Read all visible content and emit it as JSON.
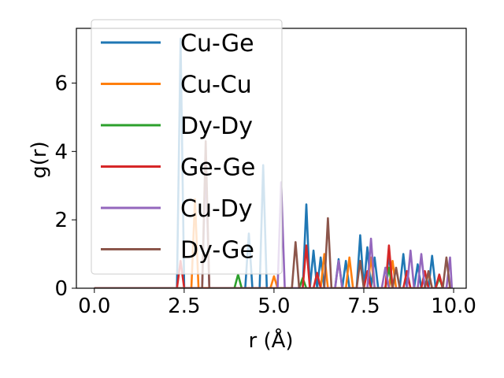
{
  "chart_data": {
    "type": "line",
    "title": "",
    "xlabel": "r (Å)",
    "ylabel": "g(r)",
    "xlim": [
      -0.5,
      10.35
    ],
    "ylim": [
      0,
      7.6
    ],
    "xticks": [
      0.0,
      2.5,
      5.0,
      7.5,
      10.0
    ],
    "xtick_labels": [
      "0.0",
      "2.5",
      "5.0",
      "7.5",
      "10.0"
    ],
    "yticks": [
      0,
      2,
      4,
      6
    ],
    "ytick_labels": [
      "0",
      "2",
      "4",
      "6"
    ],
    "grid": false,
    "legend_position": "upper-left",
    "series": [
      {
        "name": "Cu-Ge",
        "color": "#1f77b4",
        "points": [
          [
            0,
            0
          ],
          [
            2.3,
            0
          ],
          [
            2.4,
            7.3
          ],
          [
            2.5,
            0
          ],
          [
            4.2,
            0
          ],
          [
            4.3,
            1.6
          ],
          [
            4.4,
            0
          ],
          [
            4.6,
            0
          ],
          [
            4.7,
            3.6
          ],
          [
            4.8,
            0
          ],
          [
            5.8,
            0
          ],
          [
            5.9,
            2.45
          ],
          [
            6.0,
            0
          ],
          [
            6.1,
            1.1
          ],
          [
            6.2,
            0
          ],
          [
            6.3,
            0.9
          ],
          [
            6.4,
            0
          ],
          [
            6.7,
            0
          ],
          [
            6.8,
            0.85
          ],
          [
            6.9,
            0
          ],
          [
            7.0,
            0.8
          ],
          [
            7.1,
            0
          ],
          [
            7.3,
            0
          ],
          [
            7.4,
            1.55
          ],
          [
            7.5,
            0
          ],
          [
            7.6,
            1.2
          ],
          [
            7.7,
            0
          ],
          [
            7.8,
            0.9
          ],
          [
            7.9,
            0
          ],
          [
            8.1,
            0
          ],
          [
            8.2,
            1.0
          ],
          [
            8.3,
            0
          ],
          [
            8.5,
            0
          ],
          [
            8.6,
            1.0
          ],
          [
            8.7,
            0
          ],
          [
            8.9,
            0
          ],
          [
            9.0,
            0.7
          ],
          [
            9.1,
            0
          ],
          [
            9.3,
            0
          ],
          [
            9.4,
            0.95
          ],
          [
            9.5,
            0
          ],
          [
            9.9,
            0
          ]
        ]
      },
      {
        "name": "Cu-Cu",
        "color": "#ff7f0e",
        "points": [
          [
            0,
            0
          ],
          [
            2.7,
            0
          ],
          [
            2.8,
            2.6
          ],
          [
            2.9,
            0
          ],
          [
            4.9,
            0
          ],
          [
            5.0,
            0.35
          ],
          [
            5.1,
            0
          ],
          [
            6.3,
            0
          ],
          [
            6.4,
            1.0
          ],
          [
            6.5,
            0
          ],
          [
            7.0,
            0
          ],
          [
            7.1,
            0.9
          ],
          [
            7.2,
            0
          ],
          [
            7.6,
            0
          ],
          [
            7.7,
            0.9
          ],
          [
            7.8,
            0
          ],
          [
            8.2,
            0
          ],
          [
            8.3,
            0.8
          ],
          [
            8.4,
            0
          ],
          [
            9.2,
            0
          ],
          [
            9.3,
            0.45
          ],
          [
            9.4,
            0
          ],
          [
            9.9,
            0
          ]
        ]
      },
      {
        "name": "Dy-Dy",
        "color": "#2ca02c",
        "points": [
          [
            0,
            0
          ],
          [
            3.9,
            0
          ],
          [
            4.0,
            0.4
          ],
          [
            4.1,
            0
          ],
          [
            5.7,
            0
          ],
          [
            5.8,
            0.3
          ],
          [
            5.9,
            0
          ],
          [
            8.1,
            0
          ],
          [
            8.2,
            0.6
          ],
          [
            8.3,
            0
          ],
          [
            9.5,
            0
          ],
          [
            9.6,
            0.3
          ],
          [
            9.7,
            0
          ],
          [
            9.9,
            0
          ]
        ]
      },
      {
        "name": "Ge-Ge",
        "color": "#d62728",
        "points": [
          [
            0,
            0
          ],
          [
            2.3,
            0
          ],
          [
            2.4,
            0.8
          ],
          [
            2.5,
            0
          ],
          [
            5.8,
            0
          ],
          [
            5.9,
            1.25
          ],
          [
            6.0,
            0
          ],
          [
            6.1,
            0
          ],
          [
            6.2,
            0.45
          ],
          [
            6.3,
            0
          ],
          [
            7.5,
            0
          ],
          [
            7.6,
            0.5
          ],
          [
            7.7,
            0
          ],
          [
            8.1,
            0
          ],
          [
            8.2,
            1.25
          ],
          [
            8.3,
            0
          ],
          [
            8.6,
            0
          ],
          [
            8.7,
            0.5
          ],
          [
            8.8,
            0
          ],
          [
            9.1,
            0
          ],
          [
            9.2,
            0.5
          ],
          [
            9.3,
            0
          ],
          [
            9.5,
            0
          ],
          [
            9.6,
            0.4
          ],
          [
            9.7,
            0
          ],
          [
            9.9,
            0
          ]
        ]
      },
      {
        "name": "Cu-Dy",
        "color": "#9467bd",
        "points": [
          [
            0,
            0
          ],
          [
            3.0,
            0
          ],
          [
            3.1,
            3.7
          ],
          [
            3.2,
            0
          ],
          [
            5.1,
            0
          ],
          [
            5.2,
            3.1
          ],
          [
            5.3,
            0
          ],
          [
            6.7,
            0
          ],
          [
            6.8,
            0.8
          ],
          [
            6.9,
            0
          ],
          [
            7.6,
            0
          ],
          [
            7.7,
            1.45
          ],
          [
            7.8,
            0
          ],
          [
            8.0,
            0
          ],
          [
            8.1,
            0.6
          ],
          [
            8.2,
            0
          ],
          [
            8.7,
            0
          ],
          [
            8.8,
            1.1
          ],
          [
            8.9,
            0
          ],
          [
            9.0,
            0
          ],
          [
            9.1,
            1.0
          ],
          [
            9.2,
            0
          ],
          [
            9.8,
            0
          ],
          [
            9.9,
            0.9
          ],
          [
            9.95,
            0
          ]
        ]
      },
      {
        "name": "Dy-Ge",
        "color": "#8c564b",
        "points": [
          [
            0,
            0
          ],
          [
            3.0,
            0
          ],
          [
            3.1,
            4.3
          ],
          [
            3.2,
            0
          ],
          [
            5.5,
            0
          ],
          [
            5.6,
            1.35
          ],
          [
            5.7,
            0
          ],
          [
            6.4,
            0
          ],
          [
            6.5,
            2.05
          ],
          [
            6.6,
            0
          ],
          [
            7.3,
            0
          ],
          [
            7.4,
            0.8
          ],
          [
            7.5,
            0
          ],
          [
            8.3,
            0
          ],
          [
            8.4,
            0.6
          ],
          [
            8.5,
            0
          ],
          [
            9.2,
            0
          ],
          [
            9.3,
            0.5
          ],
          [
            9.4,
            0
          ],
          [
            9.7,
            0
          ],
          [
            9.8,
            0.9
          ],
          [
            9.9,
            0
          ]
        ]
      }
    ]
  }
}
